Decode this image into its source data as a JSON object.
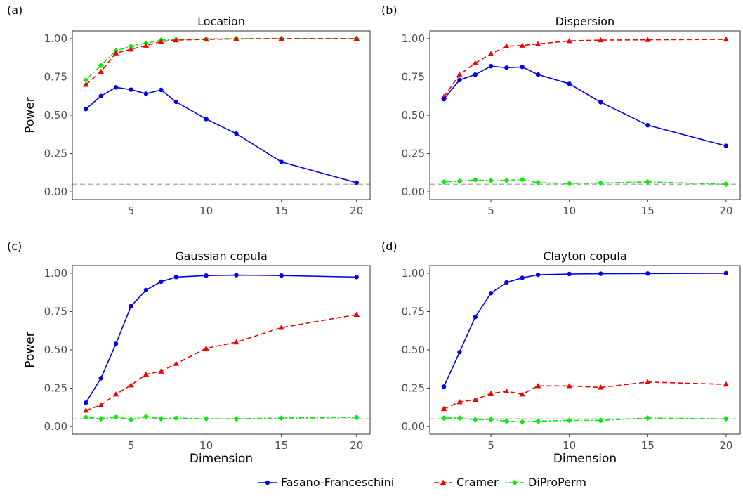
{
  "chart_data": [
    {
      "type": "line",
      "tag": "(a)",
      "title": "Location",
      "xlabel": "",
      "ylabel": "Power",
      "xlim": [
        1.1,
        20.9
      ],
      "ylim": [
        -0.05,
        1.05
      ],
      "xticks": [
        5,
        10,
        15,
        20
      ],
      "yticks": [
        0.0,
        0.25,
        0.5,
        0.75,
        1.0
      ],
      "ytick_labels": [
        "0.00",
        "0.25",
        "0.50",
        "0.75",
        "1.00"
      ],
      "reference_line": 0.05,
      "x": [
        2,
        3,
        4,
        5,
        6,
        7,
        8,
        10,
        12,
        15,
        20
      ],
      "series": [
        {
          "key": "ff",
          "values": [
            0.54,
            0.625,
            0.682,
            0.667,
            0.64,
            0.665,
            0.587,
            0.475,
            0.38,
            0.195,
            0.06
          ]
        },
        {
          "key": "cramer",
          "values": [
            0.7,
            0.785,
            0.905,
            0.93,
            0.955,
            0.98,
            0.99,
            0.995,
            0.998,
            1.0,
            1.0
          ]
        },
        {
          "key": "dpp",
          "values": [
            0.73,
            0.825,
            0.92,
            0.95,
            0.97,
            0.99,
            0.995,
            0.998,
            1.0,
            1.0,
            1.0
          ]
        }
      ]
    },
    {
      "type": "line",
      "tag": "(b)",
      "title": "Dispersion",
      "xlabel": "",
      "ylabel": "",
      "xlim": [
        1.1,
        20.9
      ],
      "ylim": [
        -0.05,
        1.05
      ],
      "xticks": [
        5,
        10,
        15,
        20
      ],
      "yticks": [
        0.0,
        0.25,
        0.5,
        0.75,
        1.0
      ],
      "ytick_labels": [
        "0.00",
        "0.25",
        "0.50",
        "0.75",
        "1.00"
      ],
      "reference_line": 0.05,
      "x": [
        2,
        3,
        4,
        5,
        6,
        7,
        8,
        10,
        12,
        15,
        20
      ],
      "series": [
        {
          "key": "ff",
          "values": [
            0.605,
            0.73,
            0.765,
            0.82,
            0.81,
            0.815,
            0.765,
            0.705,
            0.585,
            0.435,
            0.3
          ]
        },
        {
          "key": "cramer",
          "values": [
            0.62,
            0.765,
            0.84,
            0.9,
            0.95,
            0.955,
            0.965,
            0.985,
            0.99,
            0.992,
            0.995
          ]
        },
        {
          "key": "dpp",
          "values": [
            0.065,
            0.07,
            0.078,
            0.073,
            0.075,
            0.08,
            0.06,
            0.055,
            0.058,
            0.065,
            0.05
          ]
        }
      ]
    },
    {
      "type": "line",
      "tag": "(c)",
      "title": "Gaussian copula",
      "xlabel": "Dimension",
      "ylabel": "Power",
      "xlim": [
        1.1,
        20.9
      ],
      "ylim": [
        -0.05,
        1.05
      ],
      "xticks": [
        5,
        10,
        15,
        20
      ],
      "yticks": [
        0.0,
        0.25,
        0.5,
        0.75,
        1.0
      ],
      "ytick_labels": [
        "0.00",
        "0.25",
        "0.50",
        "0.75",
        "1.00"
      ],
      "reference_line": 0.05,
      "x": [
        2,
        3,
        4,
        5,
        6,
        7,
        8,
        10,
        12,
        15,
        20
      ],
      "series": [
        {
          "key": "ff",
          "values": [
            0.155,
            0.315,
            0.54,
            0.785,
            0.89,
            0.945,
            0.975,
            0.985,
            0.988,
            0.985,
            0.975
          ]
        },
        {
          "key": "cramer",
          "values": [
            0.105,
            0.14,
            0.21,
            0.27,
            0.34,
            0.36,
            0.41,
            0.51,
            0.55,
            0.645,
            0.73
          ]
        },
        {
          "key": "dpp",
          "values": [
            0.06,
            0.05,
            0.062,
            0.045,
            0.065,
            0.05,
            0.055,
            0.05,
            0.05,
            0.055,
            0.06
          ]
        }
      ]
    },
    {
      "type": "line",
      "tag": "(d)",
      "title": "Clayton copula",
      "xlabel": "Dimension",
      "ylabel": "",
      "xlim": [
        1.1,
        20.9
      ],
      "ylim": [
        -0.05,
        1.05
      ],
      "xticks": [
        5,
        10,
        15,
        20
      ],
      "yticks": [
        0.0,
        0.25,
        0.5,
        0.75,
        1.0
      ],
      "ytick_labels": [
        "0.00",
        "0.25",
        "0.50",
        "0.75",
        "1.00"
      ],
      "reference_line": 0.05,
      "x": [
        2,
        3,
        4,
        5,
        6,
        7,
        8,
        10,
        12,
        15,
        20
      ],
      "series": [
        {
          "key": "ff",
          "values": [
            0.26,
            0.485,
            0.715,
            0.87,
            0.94,
            0.97,
            0.99,
            0.995,
            0.997,
            0.998,
            1.0
          ]
        },
        {
          "key": "cramer",
          "values": [
            0.115,
            0.16,
            0.175,
            0.215,
            0.23,
            0.21,
            0.265,
            0.265,
            0.255,
            0.29,
            0.275
          ]
        },
        {
          "key": "dpp",
          "values": [
            0.055,
            0.055,
            0.045,
            0.045,
            0.035,
            0.03,
            0.035,
            0.04,
            0.04,
            0.055,
            0.05
          ]
        }
      ]
    }
  ],
  "legend": {
    "placement": "bottom",
    "items": [
      {
        "key": "ff",
        "label": "Fasano-Franceschini",
        "color": "#0000ee",
        "dash": "solid",
        "marker": "circle"
      },
      {
        "key": "cramer",
        "label": "Cramer",
        "color": "#ee0000",
        "dash": "dashed",
        "marker": "triangle"
      },
      {
        "key": "dpp",
        "label": "DiProPerm",
        "color": "#00ee00",
        "dash": "dotdash",
        "marker": "diamond"
      }
    ]
  },
  "colors": {
    "reference_line": "#999999",
    "panel_border": "#333333",
    "tick_label": "#4d4d4d"
  }
}
